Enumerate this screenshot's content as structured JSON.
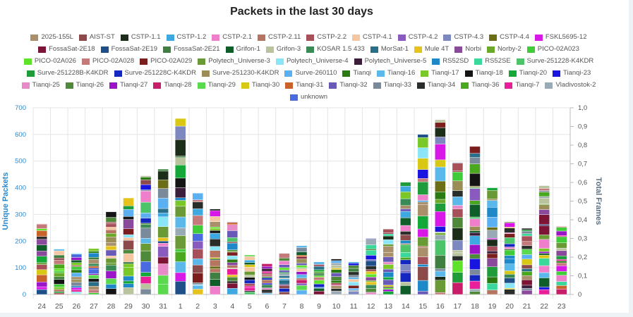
{
  "chart_data": {
    "type": "bar",
    "title": "Packets in the last 30 days",
    "ylabel": "Unique Packets",
    "y2label": "Total Frames",
    "ylim": [
      0,
      700
    ],
    "y2lim": [
      0,
      1.0
    ],
    "yticks": [
      "0",
      "100",
      "200",
      "300",
      "400",
      "500",
      "600",
      "700"
    ],
    "y2ticks": [
      "0",
      "0,1",
      "0,2",
      "0,3",
      "0,4",
      "0,5",
      "0,6",
      "0,7",
      "0,8",
      "0,9",
      "1,0"
    ],
    "categories": [
      "24",
      "25",
      "26",
      "27",
      "28",
      "29",
      "30",
      "31",
      "1",
      "2",
      "3",
      "4",
      "5",
      "6",
      "7",
      "8",
      "9",
      "10",
      "11",
      "12",
      "13",
      "14",
      "15",
      "16",
      "17",
      "18",
      "19",
      "20",
      "21",
      "22",
      "23"
    ],
    "totals": [
      265,
      170,
      155,
      172,
      310,
      362,
      445,
      470,
      660,
      380,
      320,
      272,
      148,
      115,
      155,
      183,
      122,
      133,
      122,
      210,
      245,
      422,
      600,
      655,
      495,
      555,
      400,
      272,
      248,
      408,
      255
    ],
    "grid": true,
    "legend_position": "top",
    "series": [
      {
        "name": "2025-155L",
        "color": "#a9906a"
      },
      {
        "name": "AIST-ST",
        "color": "#8c4a4a"
      },
      {
        "name": "CSTP-1.1",
        "color": "#1c2e1a"
      },
      {
        "name": "CSTP-1.2",
        "color": "#3ea8e0"
      },
      {
        "name": "CSTP-2.1",
        "color": "#ef7fcb"
      },
      {
        "name": "CSTP-2.11",
        "color": "#b57560"
      },
      {
        "name": "CSTP-2.2",
        "color": "#a8505a"
      },
      {
        "name": "CSTP-4.1",
        "color": "#f4c6a2"
      },
      {
        "name": "CSTP-4.2",
        "color": "#8a5bbf"
      },
      {
        "name": "CSTP-4.3",
        "color": "#7d87c0"
      },
      {
        "name": "CSTP-4.4",
        "color": "#6b6e16"
      },
      {
        "name": "FSKL5695-12",
        "color": "#d818e6"
      },
      {
        "name": "FossaSat-2E18",
        "color": "#7c1436"
      },
      {
        "name": "FossaSat-2E19",
        "color": "#1e4f88"
      },
      {
        "name": "FossaSat-2E21",
        "color": "#3f7f40"
      },
      {
        "name": "Grifon-1",
        "color": "#0f5e2a"
      },
      {
        "name": "Grifon-3",
        "color": "#b9c49e"
      },
      {
        "name": "KOSAR 1.5 433",
        "color": "#3a8a56"
      },
      {
        "name": "MorSat-1",
        "color": "#2a6f8a"
      },
      {
        "name": "Mule 4T",
        "color": "#e6c21c"
      },
      {
        "name": "Norbi",
        "color": "#8a4a9c"
      },
      {
        "name": "Norby-2",
        "color": "#6aa82a"
      },
      {
        "name": "PICO-02A023",
        "color": "#3fcc38"
      },
      {
        "name": "PICO-02A026",
        "color": "#5ee22a"
      },
      {
        "name": "PICO-02A028",
        "color": "#c47a7a"
      },
      {
        "name": "PICO-02A029",
        "color": "#7a1e1e"
      },
      {
        "name": "Polytech_Universe-3",
        "color": "#6a9a36"
      },
      {
        "name": "Polytech_Universe-4",
        "color": "#8ae6f6"
      },
      {
        "name": "Polytech_Universe-5",
        "color": "#3a1e3a"
      },
      {
        "name": "RS52SD",
        "color": "#1e88c8"
      },
      {
        "name": "RS52SE",
        "color": "#3ad89a"
      },
      {
        "name": "Surve-251228-K4KDR",
        "color": "#4ec46a"
      },
      {
        "name": "Surve-251228B-K4KDR",
        "color": "#1e9c3a"
      },
      {
        "name": "Surve-251228C-K4KDR",
        "color": "#1428c0"
      },
      {
        "name": "Surve-251230-K4KDR",
        "color": "#9a8e56"
      },
      {
        "name": "Surve-260110",
        "color": "#5ab0f0"
      },
      {
        "name": "Tianqi",
        "color": "#2a7a12"
      },
      {
        "name": "Tianqi-16",
        "color": "#5ab8ea"
      },
      {
        "name": "Tianqi-17",
        "color": "#7ac828"
      },
      {
        "name": "Tianqi-18",
        "color": "#141414"
      },
      {
        "name": "Tianqi-20",
        "color": "#14a838"
      },
      {
        "name": "Tianqi-23",
        "color": "#1a14e0"
      },
      {
        "name": "Tianqi-25",
        "color": "#e88ac8"
      },
      {
        "name": "Tianqi-26",
        "color": "#4e8a3a"
      },
      {
        "name": "Tianqi-27",
        "color": "#9a14c8"
      },
      {
        "name": "Tianqi-28",
        "color": "#c81e6a"
      },
      {
        "name": "Tianqi-29",
        "color": "#5ad84e"
      },
      {
        "name": "Tianqi-30",
        "color": "#d8c814"
      },
      {
        "name": "Tianqi-31",
        "color": "#c8622a"
      },
      {
        "name": "Tianqi-32",
        "color": "#6a5ab8"
      },
      {
        "name": "Tianqi-33",
        "color": "#7a8a9a"
      },
      {
        "name": "Tianqi-34",
        "color": "#2a2e2a"
      },
      {
        "name": "Tianqi-36",
        "color": "#4aa81e"
      },
      {
        "name": "Tianqi-7",
        "color": "#e81e9a"
      },
      {
        "name": "Vladivostok-2",
        "color": "#9aaab4"
      },
      {
        "name": "unknown",
        "color": "#4a6ae0"
      }
    ]
  }
}
